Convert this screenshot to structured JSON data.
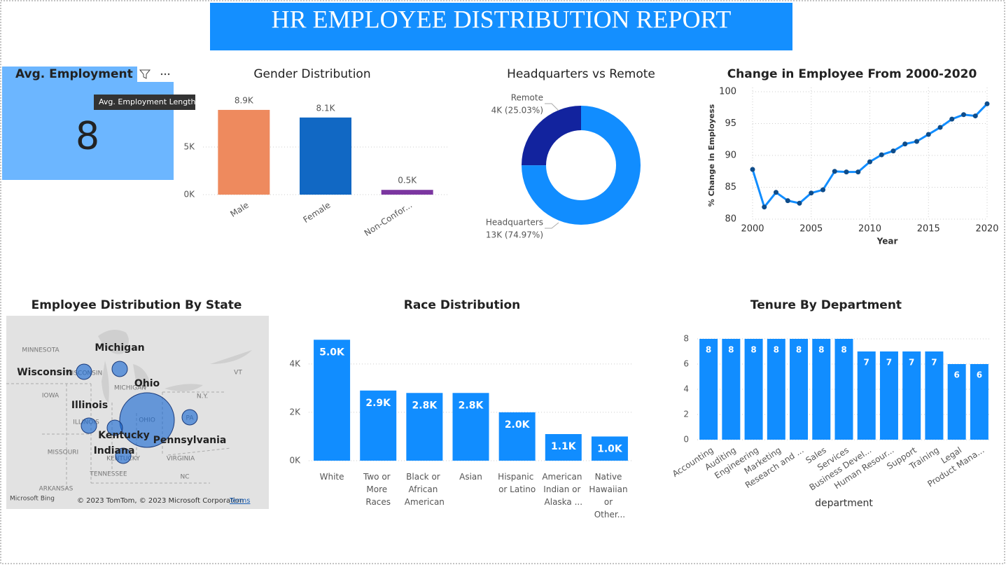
{
  "header": {
    "title": "HR EMPLOYEE DISTRIBUTION REPORT"
  },
  "card": {
    "title": "Avg. Employment Length",
    "value": 8
  },
  "map": {
    "title": "Employee Distribution By State",
    "states": [
      "Michigan",
      "Wisconsin",
      "Ohio",
      "Illinois",
      "Kentucky",
      "Indiana",
      "Pennsylvania"
    ],
    "places": [
      "MINNESOTA",
      "WISCONSIN",
      "IOWA",
      "ILLINOIS",
      "MICHIGAN",
      "OHIO",
      "MISSOURI",
      "KENTUCKY",
      "TENNESSEE",
      "ARKANSAS",
      "VIRGINIA",
      "NC",
      "N.Y.",
      "VT",
      "PA"
    ],
    "attribution": "© 2023 TomTom, © 2023 Microsoft Corporation",
    "terms": "Terms",
    "brand": "Microsoft Bing"
  },
  "chart_data": [
    {
      "type": "bar",
      "title": "Gender Distribution",
      "categories": [
        "Male",
        "Female",
        "Non-Confor..."
      ],
      "values": [
        8900,
        8100,
        500
      ],
      "value_labels": [
        "8.9K",
        "8.1K",
        "0.5K"
      ],
      "colors": [
        "#ee8a5e",
        "#1168c4",
        "#7b36a0"
      ],
      "ylim": [
        0,
        10000
      ],
      "yticks": [
        {
          "value": 0,
          "label": "0K"
        },
        {
          "value": 5000,
          "label": "5K"
        }
      ],
      "grid": true
    },
    {
      "type": "donut",
      "title": "Headquarters vs Remote",
      "categories": [
        "Remote",
        "Headquarters"
      ],
      "values": [
        25.03,
        74.97
      ],
      "value_labels": [
        "4K (25.03%)",
        "13K (74.97%)"
      ],
      "colors": [
        "#12239e",
        "#118dff"
      ]
    },
    {
      "type": "line",
      "title": "Change in Employee From 2000-2020",
      "xlabel": "Year",
      "ylabel": "% Change in Employess",
      "x": [
        2000,
        2001,
        2002,
        2003,
        2004,
        2005,
        2006,
        2007,
        2008,
        2009,
        2010,
        2011,
        2012,
        2013,
        2014,
        2015,
        2016,
        2017,
        2018,
        2019,
        2020
      ],
      "values": [
        87.8,
        81.9,
        84.2,
        82.9,
        82.5,
        84.1,
        84.6,
        87.5,
        87.4,
        87.4,
        89.0,
        90.1,
        90.7,
        91.8,
        92.2,
        93.3,
        94.4,
        95.7,
        96.4,
        96.2,
        98.1
      ],
      "color": "#118dff",
      "xlim": [
        2000,
        2020
      ],
      "xticks": [
        2000,
        2005,
        2010,
        2015,
        2020
      ],
      "ylim": [
        80,
        100
      ],
      "yticks": [
        80,
        85,
        90,
        95,
        100
      ],
      "grid": true
    },
    {
      "type": "bar",
      "title": "Race Distribution",
      "categories": [
        "White",
        "Two or More Races",
        "Black or African American",
        "Asian",
        "Hispanic or Latino",
        "American Indian or Alaska ...",
        "Native Hawaiian or Other..."
      ],
      "values": [
        5000,
        2900,
        2800,
        2800,
        2000,
        1100,
        1000
      ],
      "value_labels": [
        "5.0K",
        "2.9K",
        "2.8K",
        "2.8K",
        "2.0K",
        "1.1K",
        "1.0K"
      ],
      "color": "#118dff",
      "ylim": [
        0,
        5500
      ],
      "yticks": [
        {
          "value": 0,
          "label": "0K"
        },
        {
          "value": 2000,
          "label": "2K"
        },
        {
          "value": 4000,
          "label": "4K"
        }
      ],
      "grid": true
    },
    {
      "type": "bar",
      "title": "Tenure By Department",
      "xlabel": "department",
      "categories": [
        "Accounting",
        "Auditing",
        "Engineering",
        "Marketing",
        "Research and ...",
        "Sales",
        "Services",
        "Business Devel...",
        "Human Resour...",
        "Support",
        "Training",
        "Legal",
        "Product Mana..."
      ],
      "values": [
        8,
        8,
        8,
        8,
        8,
        8,
        8,
        7,
        7,
        7,
        7,
        6,
        6
      ],
      "color": "#118dff",
      "ylim": [
        0,
        8
      ],
      "yticks": [
        0,
        2,
        4,
        6,
        8
      ],
      "grid": true
    }
  ]
}
